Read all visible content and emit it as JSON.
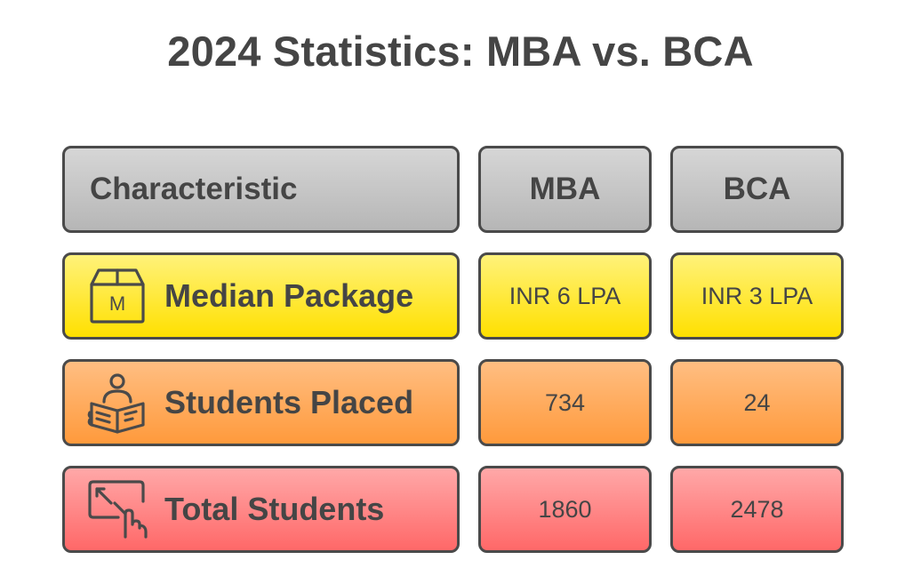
{
  "title": "2024 Statistics: MBA vs. BCA",
  "header": {
    "characteristic": "Characteristic",
    "mba": "MBA",
    "bca": "BCA"
  },
  "rows": [
    {
      "label": "Median Package",
      "icon": "package-box-icon",
      "icon_letter": "M",
      "mba": "INR 6 LPA",
      "bca": "INR 3 LPA",
      "color": "#ffe600"
    },
    {
      "label": "Students Placed",
      "icon": "student-reading-icon",
      "mba": "734",
      "bca": "24",
      "color": "#ffa34a"
    },
    {
      "label": "Total Students",
      "icon": "expand-touch-icon",
      "mba": "1860",
      "bca": "2478",
      "color": "#ff7474"
    }
  ],
  "colors": {
    "header": "#c4c4c4",
    "border": "#4a4a4a",
    "text": "#454545"
  }
}
